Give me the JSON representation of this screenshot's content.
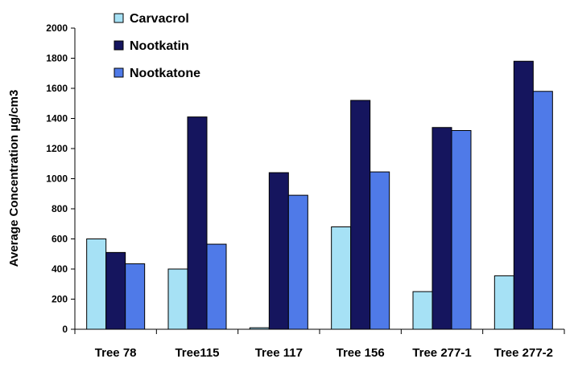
{
  "chart_data": {
    "type": "bar",
    "categories": [
      "Tree 78",
      "Tree115",
      "Tree 117",
      "Tree 156",
      "Tree 277-1",
      "Tree 277-2"
    ],
    "series": [
      {
        "name": "Carvacrol",
        "color": "#a6e1f5",
        "values": [
          600,
          400,
          10,
          680,
          250,
          355
        ]
      },
      {
        "name": "Nootkatin",
        "color": "#15155e",
        "values": [
          510,
          1410,
          1040,
          1520,
          1340,
          1780
        ]
      },
      {
        "name": "Nootkatone",
        "color": "#4f7ae8",
        "values": [
          435,
          565,
          890,
          1045,
          1320,
          1580
        ]
      }
    ],
    "title": "",
    "xlabel": "",
    "ylabel": "Average Concentration µg/cm3",
    "ylim": [
      0,
      2000
    ],
    "yticks": [
      0,
      200,
      400,
      600,
      800,
      1000,
      1200,
      1400,
      1600,
      1800,
      2000
    ],
    "grid": false,
    "legend": "top-left"
  }
}
